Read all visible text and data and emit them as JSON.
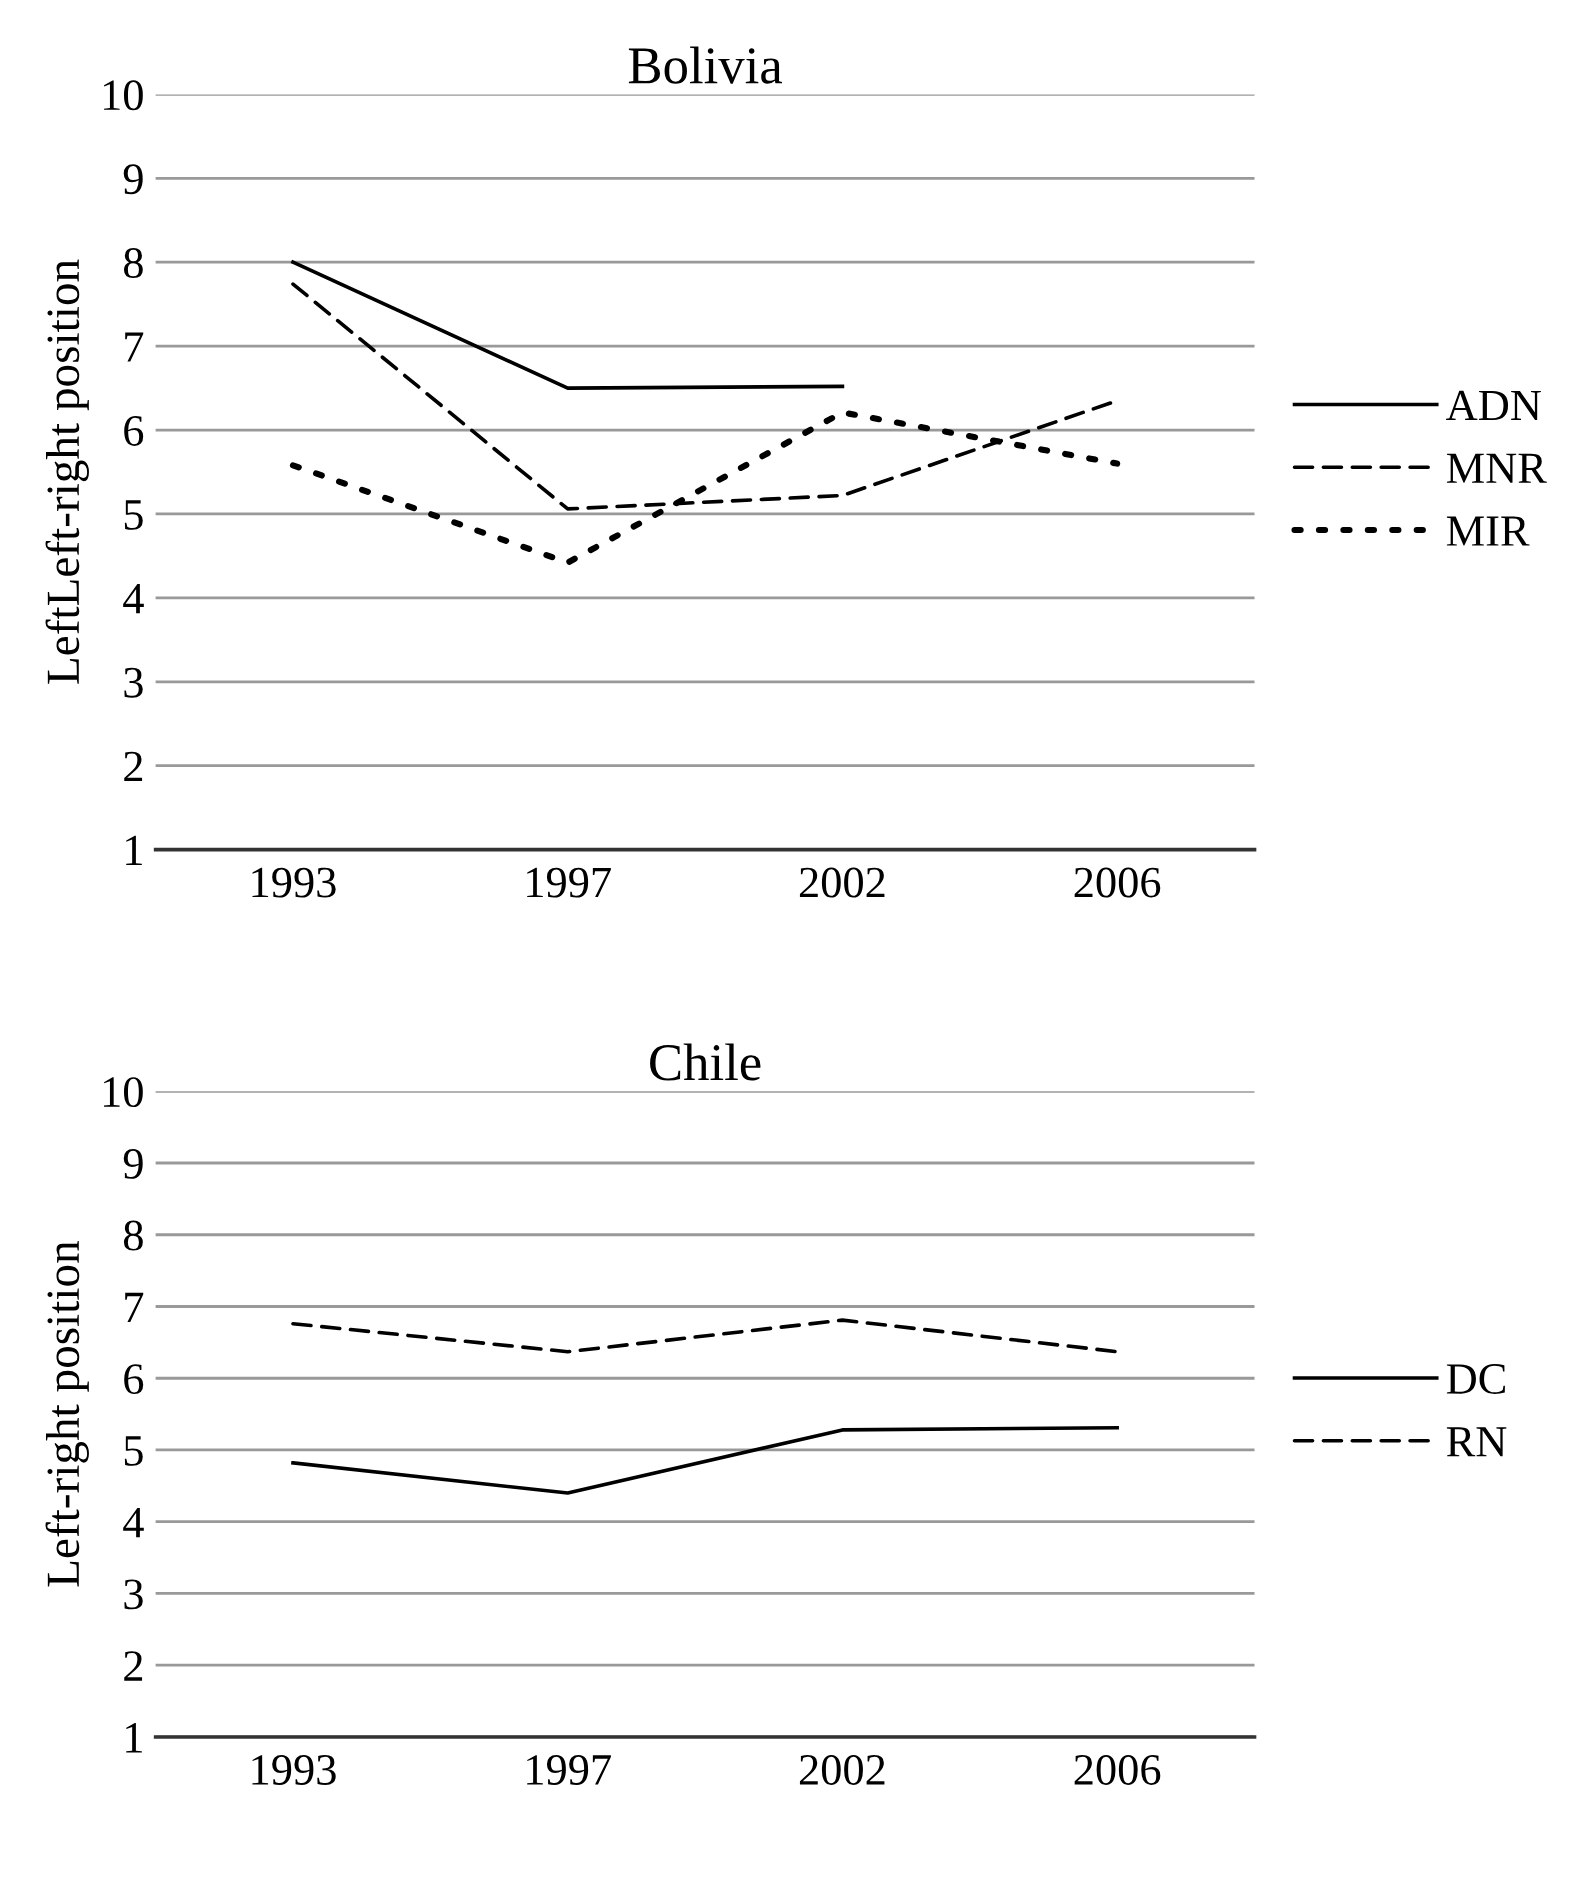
{
  "chart_data": [
    {
      "type": "line",
      "title": "Bolivia",
      "ylabel": "LeftLeft-right position",
      "categories": [
        "1993",
        "1997",
        "2002",
        "2006"
      ],
      "series": [
        {
          "name": "ADN",
          "color": "#000000",
          "line_style": "solid",
          "values": [
            8.0,
            6.5,
            6.52,
            null
          ]
        },
        {
          "name": "MNR",
          "color": "#000000",
          "line_style": "dashed",
          "values": [
            7.74,
            5.06,
            5.22,
            6.35
          ]
        },
        {
          "name": "MIR",
          "color": "#000000",
          "line_style": "dotted",
          "values": [
            5.58,
            4.42,
            6.21,
            5.6
          ]
        }
      ],
      "ylim": [
        1,
        10
      ],
      "yticks": [
        1,
        2,
        3,
        4,
        5,
        6,
        7,
        8,
        9,
        10
      ],
      "grid": "y",
      "legend": "right"
    },
    {
      "type": "line",
      "title": "Chile",
      "ylabel": "Left-right position",
      "categories": [
        "1993",
        "1997",
        "2002",
        "2006"
      ],
      "series": [
        {
          "name": "DC",
          "color": "#000000",
          "line_style": "solid",
          "values": [
            4.82,
            4.4,
            5.28,
            5.31
          ]
        },
        {
          "name": "RN",
          "color": "#000000",
          "line_style": "dashed",
          "values": [
            6.76,
            6.37,
            6.81,
            6.37
          ]
        }
      ],
      "ylim": [
        1,
        10
      ],
      "yticks": [
        1,
        2,
        3,
        4,
        5,
        6,
        7,
        8,
        9,
        10
      ],
      "grid": "y",
      "legend": "right"
    }
  ]
}
